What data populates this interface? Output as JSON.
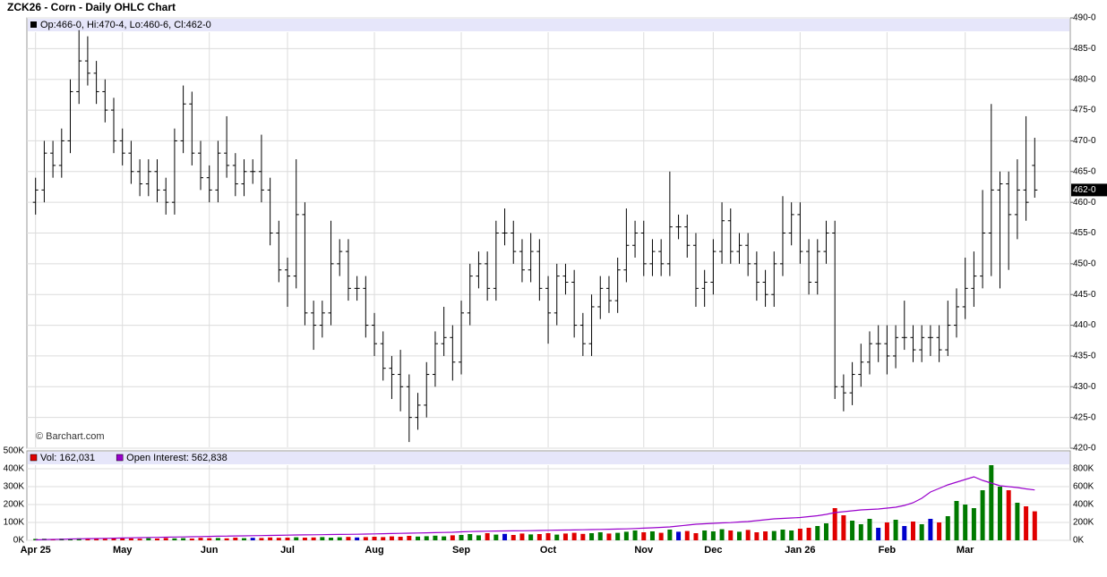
{
  "chart_data": [
    {
      "type": "ohlc",
      "title": "ZCK26 - Corn - Daily OHLC Chart",
      "info": "Op:466-0, Hi:470-4, Lo:460-6, Cl:462-0",
      "credit": "© Barchart.com",
      "color": "#000000",
      "xlim": [
        -1,
        116
      ],
      "ylim": [
        420,
        490
      ],
      "yticks": [
        {
          "value": 420,
          "label": "420-0"
        },
        {
          "value": 425,
          "label": "425-0"
        },
        {
          "value": 430,
          "label": "430-0"
        },
        {
          "value": 435,
          "label": "435-0"
        },
        {
          "value": 440,
          "label": "440-0"
        },
        {
          "value": 445,
          "label": "445-0"
        },
        {
          "value": 450,
          "label": "450-0"
        },
        {
          "value": 455,
          "label": "455-0"
        },
        {
          "value": 460,
          "label": "460-0"
        },
        {
          "value": 465,
          "label": "465-0"
        },
        {
          "value": 470,
          "label": "470-0"
        },
        {
          "value": 475,
          "label": "475-0"
        },
        {
          "value": 480,
          "label": "480-0"
        },
        {
          "value": 485,
          "label": "485-0"
        },
        {
          "value": 490,
          "label": "490-0"
        }
      ],
      "last_price": {
        "value": 462,
        "label": "462-0"
      },
      "grid": true,
      "open": [
        460,
        462,
        468,
        466,
        470,
        478,
        483,
        481,
        478,
        475,
        470,
        468,
        465,
        463,
        465,
        462,
        460,
        470,
        476,
        468,
        464,
        462,
        468,
        466,
        463,
        465,
        465,
        462,
        455,
        449,
        448,
        458,
        442,
        440,
        442,
        450,
        452,
        446,
        446,
        440,
        437,
        433,
        432,
        430,
        425,
        427,
        432,
        437,
        438,
        434,
        442,
        448,
        450,
        446,
        455,
        455,
        452,
        449,
        452,
        446,
        442,
        448,
        447,
        440,
        437,
        443,
        446,
        444,
        449,
        453,
        455,
        450,
        452,
        450,
        456,
        456,
        453,
        446,
        447,
        452,
        457,
        452,
        453,
        450,
        447,
        445,
        450,
        455,
        458,
        452,
        447,
        452,
        455,
        430,
        429,
        432,
        434,
        437,
        437,
        435,
        438,
        438,
        436,
        438,
        438,
        436,
        440,
        443,
        446,
        448,
        455,
        462,
        463,
        458,
        462,
        466
      ],
      "high": [
        464,
        470,
        470,
        472,
        480,
        488,
        487,
        483,
        480,
        477,
        472,
        470,
        467,
        467,
        467,
        464,
        472,
        479,
        478,
        470,
        466,
        470,
        474,
        468,
        467,
        467,
        471,
        464,
        457,
        451,
        467,
        460,
        444,
        444,
        457,
        454,
        454,
        448,
        448,
        442,
        439,
        435,
        436,
        432,
        429,
        434,
        439,
        443,
        440,
        444,
        450,
        452,
        452,
        457,
        459,
        457,
        454,
        455,
        454,
        448,
        450,
        450,
        449,
        442,
        445,
        448,
        448,
        451,
        459,
        457,
        457,
        454,
        454,
        465,
        458,
        458,
        455,
        449,
        454,
        460,
        459,
        455,
        455,
        452,
        449,
        452,
        461,
        460,
        460,
        454,
        454,
        457,
        457,
        432,
        434,
        437,
        439,
        440,
        440,
        440,
        444,
        440,
        440,
        440,
        440,
        444,
        446,
        451,
        452,
        462,
        476,
        465,
        465,
        467,
        474,
        470.5
      ],
      "low": [
        458,
        460,
        464,
        464,
        468,
        476,
        479,
        476,
        473,
        468,
        466,
        463,
        461,
        461,
        460,
        458,
        458,
        468,
        466,
        462,
        460,
        460,
        464,
        461,
        461,
        463,
        460,
        453,
        447,
        443,
        446,
        440,
        436,
        438,
        440,
        448,
        444,
        444,
        438,
        435,
        431,
        428,
        426,
        421,
        423,
        425,
        430,
        435,
        431,
        432,
        440,
        446,
        444,
        444,
        453,
        450,
        447,
        447,
        444,
        437,
        440,
        445,
        438,
        435,
        435,
        441,
        442,
        442,
        447,
        451,
        448,
        448,
        448,
        448,
        454,
        451,
        443,
        443,
        445,
        450,
        450,
        450,
        448,
        444,
        443,
        443,
        448,
        453,
        450,
        445,
        445,
        450,
        428,
        426,
        427,
        430,
        432,
        434,
        432,
        433,
        436,
        434,
        434,
        435,
        434,
        435,
        438,
        441,
        443,
        446,
        448,
        446,
        449,
        454,
        457,
        460.75
      ],
      "close": [
        462,
        468,
        466,
        470,
        478,
        483,
        481,
        478,
        475,
        470,
        468,
        465,
        463,
        465,
        462,
        460,
        470,
        476,
        468,
        464,
        462,
        468,
        466,
        463,
        465,
        465,
        462,
        455,
        449,
        448,
        458,
        442,
        440,
        442,
        450,
        452,
        446,
        446,
        440,
        437,
        433,
        432,
        430,
        425,
        427,
        432,
        437,
        438,
        434,
        442,
        448,
        450,
        446,
        455,
        455,
        452,
        449,
        452,
        446,
        442,
        448,
        447,
        440,
        437,
        443,
        446,
        444,
        449,
        453,
        455,
        450,
        452,
        450,
        456,
        456,
        453,
        446,
        447,
        452,
        457,
        452,
        453,
        450,
        447,
        445,
        450,
        455,
        458,
        452,
        447,
        452,
        455,
        430,
        429,
        432,
        434,
        437,
        437,
        435,
        438,
        438,
        436,
        438,
        438,
        436,
        440,
        443,
        446,
        448,
        455,
        462,
        463,
        458,
        462,
        460,
        462
      ]
    },
    {
      "type": "volume",
      "xlim": [
        -1,
        116
      ],
      "ylim": [
        0,
        500000
      ],
      "y2lim": [
        0,
        1000000
      ],
      "up_color": "#007a00",
      "down_color": "#e00000",
      "flat_color": "#0000cc",
      "xticks": [
        {
          "value": 0,
          "label": "Apr 25"
        },
        {
          "value": 10,
          "label": "May"
        },
        {
          "value": 20,
          "label": "Jun"
        },
        {
          "value": 29,
          "label": "Jul"
        },
        {
          "value": 39,
          "label": "Aug"
        },
        {
          "value": 49,
          "label": "Sep"
        },
        {
          "value": 59,
          "label": "Oct"
        },
        {
          "value": 70,
          "label": "Nov"
        },
        {
          "value": 78,
          "label": "Dec"
        },
        {
          "value": 88,
          "label": "Jan 26"
        },
        {
          "value": 98,
          "label": "Feb"
        },
        {
          "value": 107,
          "label": "Mar"
        }
      ],
      "yticks": [
        {
          "value": 0,
          "label": "0K"
        },
        {
          "value": 100000,
          "label": "100K"
        },
        {
          "value": 200000,
          "label": "200K"
        },
        {
          "value": 300000,
          "label": "300K"
        },
        {
          "value": 400000,
          "label": "400K"
        },
        {
          "value": 500000,
          "label": "500K"
        }
      ],
      "y2ticks": [
        {
          "value": 0,
          "label": "0K"
        },
        {
          "value": 200000,
          "label": "200K"
        },
        {
          "value": 400000,
          "label": "400K"
        },
        {
          "value": 600000,
          "label": "600K"
        },
        {
          "value": 800000,
          "label": "800K"
        }
      ],
      "series": [
        {
          "name": "Vol: 162,031",
          "color": "#e00000",
          "values": [
            8000,
            9000,
            7000,
            10000,
            9000,
            11000,
            8000,
            10000,
            9000,
            12000,
            10000,
            11000,
            9000,
            12000,
            10000,
            13000,
            11000,
            12000,
            10000,
            14000,
            12000,
            13000,
            11000,
            15000,
            12000,
            14000,
            13000,
            16000,
            14000,
            15000,
            17000,
            15000,
            16000,
            18000,
            15000,
            17000,
            19000,
            16000,
            18000,
            20000,
            18000,
            22000,
            20000,
            25000,
            21000,
            23000,
            26000,
            22000,
            28000,
            30000,
            35000,
            28000,
            40000,
            32000,
            36000,
            30000,
            38000,
            33000,
            35000,
            40000,
            32000,
            38000,
            42000,
            36000,
            40000,
            45000,
            38000,
            42000,
            48000,
            55000,
            45000,
            50000,
            42000,
            60000,
            48000,
            52000,
            40000,
            55000,
            50000,
            62000,
            55000,
            48000,
            58000,
            45000,
            50000,
            52000,
            60000,
            55000,
            65000,
            70000,
            80000,
            95000,
            180000,
            140000,
            110000,
            90000,
            120000,
            70000,
            100000,
            115000,
            80000,
            105000,
            90000,
            120000,
            100000,
            135000,
            220000,
            200000,
            180000,
            280000,
            420000,
            300000,
            280000,
            210000,
            190000,
            162031
          ]
        },
        {
          "name": "Open Interest: 562,838",
          "color": "#9900cc",
          "axis": "y2",
          "values": [
            5000,
            8000,
            10000,
            12000,
            15000,
            17000,
            19000,
            20000,
            22000,
            24000,
            26000,
            28000,
            30000,
            32000,
            33000,
            35000,
            37000,
            38000,
            40000,
            42000,
            44000,
            46000,
            47000,
            49000,
            50000,
            52000,
            53000,
            55000,
            56000,
            58000,
            60000,
            61000,
            62000,
            63000,
            65000,
            66000,
            67000,
            68000,
            70000,
            72000,
            74000,
            76000,
            78000,
            80000,
            82000,
            84000,
            86000,
            88000,
            90000,
            95000,
            98000,
            100000,
            102000,
            104000,
            105000,
            106000,
            107000,
            108000,
            110000,
            112000,
            114000,
            115000,
            116000,
            118000,
            120000,
            122000,
            124000,
            126000,
            128000,
            132000,
            136000,
            140000,
            145000,
            150000,
            160000,
            170000,
            180000,
            185000,
            190000,
            195000,
            198000,
            205000,
            210000,
            220000,
            230000,
            240000,
            245000,
            250000,
            255000,
            265000,
            275000,
            290000,
            310000,
            320000,
            330000,
            340000,
            345000,
            350000,
            360000,
            370000,
            390000,
            420000,
            470000,
            540000,
            580000,
            620000,
            650000,
            680000,
            710000,
            670000,
            640000,
            610000,
            600000,
            590000,
            575000,
            562838
          ]
        }
      ]
    }
  ]
}
